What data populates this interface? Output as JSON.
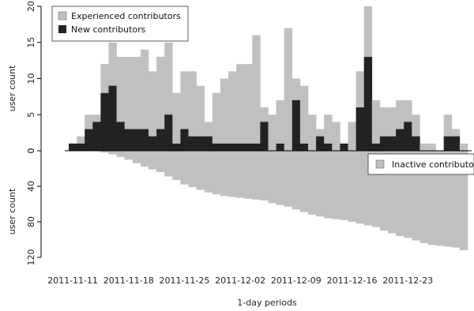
{
  "chart_data": [
    {
      "type": "bar",
      "stacked": true,
      "title": "",
      "xlabel": "1-day periods",
      "ylabel": "user count",
      "ylim": [
        0,
        20
      ],
      "y_ticks": [
        "0",
        "5",
        "10",
        "15",
        "20"
      ],
      "x_ticks": [
        "2011-11-11",
        "2011-11-18",
        "2011-11-25",
        "2011-12-02",
        "2011-12-09",
        "2011-12-16",
        "2011-12-23"
      ],
      "legend_position": "top-left",
      "categories": [
        "2011-11-11",
        "2011-11-12",
        "2011-11-13",
        "2011-11-14",
        "2011-11-15",
        "2011-11-16",
        "2011-11-17",
        "2011-11-18",
        "2011-11-19",
        "2011-11-20",
        "2011-11-21",
        "2011-11-22",
        "2011-11-23",
        "2011-11-24",
        "2011-11-25",
        "2011-11-26",
        "2011-11-27",
        "2011-11-28",
        "2011-11-29",
        "2011-11-30",
        "2011-12-01",
        "2011-12-02",
        "2011-12-03",
        "2011-12-04",
        "2011-12-05",
        "2011-12-06",
        "2011-12-07",
        "2011-12-08",
        "2011-12-09",
        "2011-12-10",
        "2011-12-11",
        "2011-12-12",
        "2011-12-13",
        "2011-12-14",
        "2011-12-15",
        "2011-12-16",
        "2011-12-17",
        "2011-12-18",
        "2011-12-19",
        "2011-12-20",
        "2011-12-21",
        "2011-12-22",
        "2011-12-23",
        "2011-12-24",
        "2011-12-25",
        "2011-12-26",
        "2011-12-27",
        "2011-12-28",
        "2011-12-29",
        "2011-12-30"
      ],
      "series": [
        {
          "name": "New contributors",
          "color": "#222222",
          "values": [
            1,
            1,
            3,
            4,
            8,
            9,
            4,
            3,
            3,
            3,
            2,
            3,
            5,
            1,
            3,
            2,
            2,
            2,
            1,
            1,
            1,
            1,
            1,
            1,
            4,
            0,
            1,
            0,
            7,
            1,
            0,
            2,
            1,
            0,
            1,
            0,
            6,
            13,
            1,
            2,
            2,
            3,
            4,
            2,
            0,
            0,
            0,
            2,
            2,
            0
          ]
        },
        {
          "name": "Experienced contributors",
          "color": "#c0c0c0",
          "values": [
            0,
            1,
            2,
            1,
            4,
            6,
            9,
            10,
            10,
            11,
            9,
            10,
            10,
            7,
            8,
            9,
            7,
            2,
            7,
            9,
            10,
            11,
            11,
            15,
            2,
            5,
            6,
            17,
            3,
            8,
            5,
            1,
            4,
            4,
            0,
            4,
            5,
            7,
            6,
            4,
            4,
            4,
            3,
            3,
            1,
            1,
            0,
            3,
            1,
            1
          ]
        }
      ]
    },
    {
      "type": "bar",
      "title": "",
      "xlabel": "",
      "ylabel": "user count",
      "ylim": [
        0,
        120
      ],
      "y_ticks": [
        "0",
        "40",
        "80",
        "120"
      ],
      "legend_position": "top-right",
      "series": [
        {
          "name": "Inactive contributors",
          "color": "#c0c0c0",
          "values": [
            0,
            0,
            0,
            0,
            2,
            4,
            7,
            10,
            14,
            18,
            21,
            24,
            29,
            33,
            38,
            41,
            44,
            47,
            49,
            51,
            52,
            53,
            54,
            55,
            56,
            59,
            61,
            63,
            66,
            69,
            72,
            74,
            76,
            77,
            78,
            80,
            82,
            84,
            86,
            90,
            93,
            96,
            98,
            101,
            104,
            106,
            107,
            108,
            109,
            112
          ]
        }
      ]
    }
  ]
}
